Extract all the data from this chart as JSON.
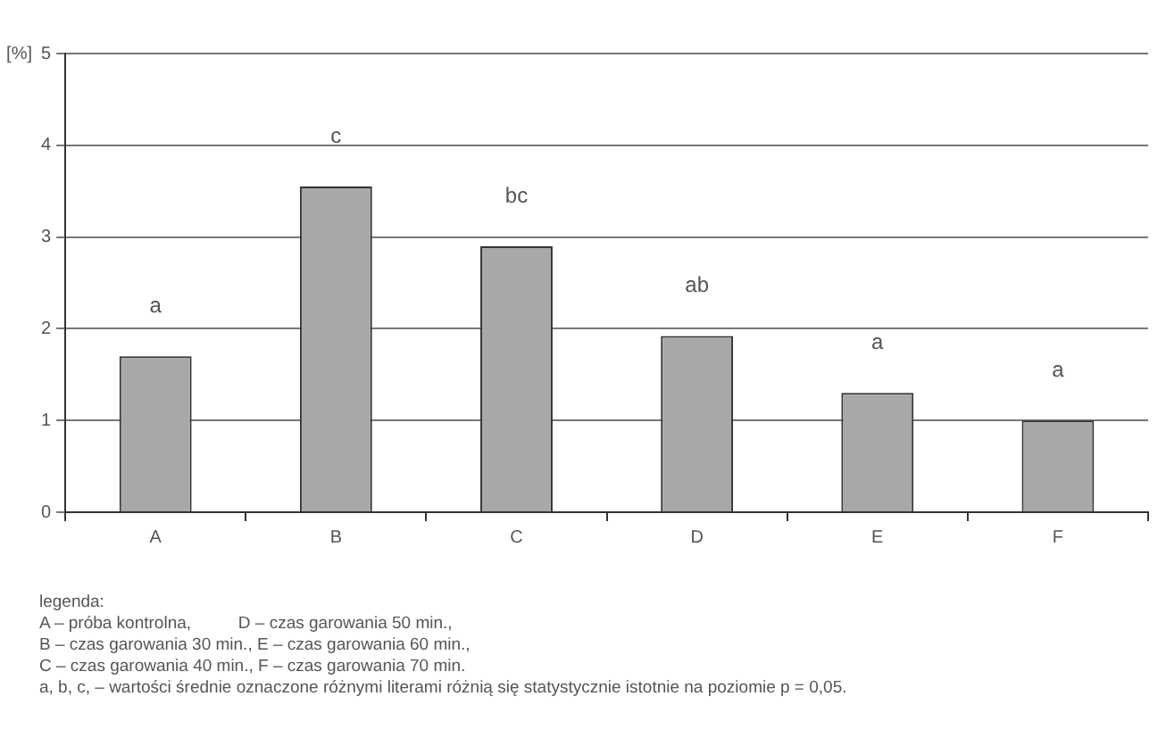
{
  "chart_data": {
    "type": "bar",
    "ylabel": "[%]",
    "categories": [
      "A",
      "B",
      "C",
      "D",
      "E",
      "F"
    ],
    "values": [
      1.7,
      3.55,
      2.9,
      1.92,
      1.3,
      1.0
    ],
    "color": "#a8a8a8",
    "ylim": [
      0,
      5
    ],
    "yticks": [
      0,
      1,
      2,
      3,
      4,
      5
    ],
    "grid": "y",
    "legend": false,
    "value_labels": [
      "a",
      "c",
      "bc",
      "ab",
      "a",
      "a"
    ],
    "annotations": [
      "legenda:",
      "A – próba kontrolna,          D – czas garowania 50 min.,",
      "B – czas garowania 30 min., E – czas garowania 60 min.,",
      "C – czas garowania 40 min., F – czas garowania 70 min.",
      "a, b, c, – wartości średnie oznaczone różnymi literami różnią się statystycznie istotnie na poziomie p = 0,05."
    ]
  }
}
